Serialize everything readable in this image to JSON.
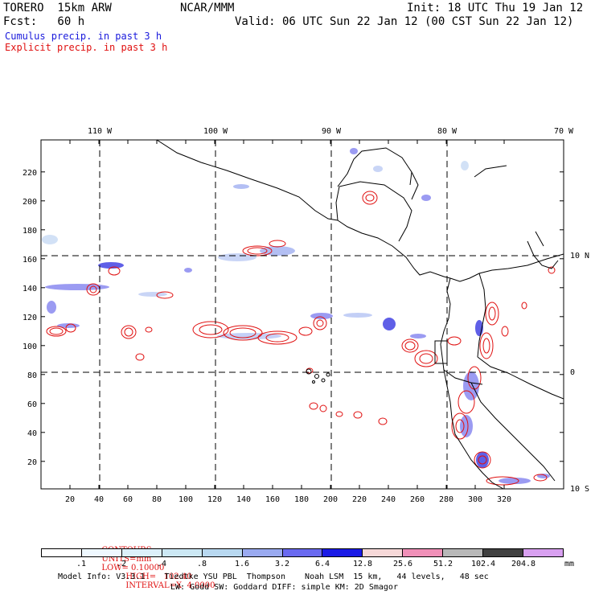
{
  "header": {
    "model": "TORERO  15km ARW",
    "org": "NCAR/MMM",
    "init": "Init: 18 UTC Thu 19 Jan 12",
    "fcst": "Fcst:   60 h",
    "valid": "Valid: 06 UTC Sun 22 Jan 12 (00 CST Sun 22 Jan 12)",
    "legend_cumulus": "Cumulus precip. in past 3 h",
    "legend_explicit": "Explicit precip. in past 3 h"
  },
  "colors": {
    "cumulus": "#1a1adc",
    "explicit": "#e01010",
    "grid": "#000000",
    "coast": "#000000"
  },
  "map": {
    "x_ticks": [
      "20",
      "40",
      "60",
      "80",
      "100",
      "120",
      "140",
      "160",
      "180",
      "200",
      "220",
      "240",
      "260",
      "280",
      "300",
      "320"
    ],
    "y_ticks": [
      "20",
      "40",
      "60",
      "80",
      "100",
      "120",
      "140",
      "160",
      "180",
      "200",
      "220"
    ],
    "lon_labels": [
      "110 W",
      "100 W",
      "90 W",
      "80 W",
      "70 W"
    ],
    "lat_labels": [
      "10 N",
      "0",
      "10 S"
    ]
  },
  "contours_line": {
    "prefix": "CONTOURS:",
    "units": "UNITS=mm",
    "low": "LOW= 0.10000",
    "high": "HIGH=   102.40",
    "interval": "INTERVAL=X  4.0000"
  },
  "colorbar": {
    "labels": [
      ".1",
      ".2",
      ".4",
      ".8",
      "1.6",
      "3.2",
      "6.4",
      "12.8",
      "25.6",
      "51.2",
      "102.4",
      "204.8"
    ],
    "unit": "mm",
    "colors": [
      "#ffffff",
      "#eef8ff",
      "#dcf0fa",
      "#cce8f4",
      "#b8d8f0",
      "#9aaaf0",
      "#6a6af0",
      "#1a1ae6",
      "#f6d8d8",
      "#f090b8",
      "#b8b8b8",
      "#404040",
      "#d8a0f0"
    ]
  },
  "footer": {
    "line1": "Model Info: V3.3.1    Tiedtke YSU PBL  Thompson    Noah LSM  15 km,   44 levels,   48 sec",
    "line2": "LW: Godd SW: Goddard DIFF: simple KM: 2D Smagor"
  }
}
